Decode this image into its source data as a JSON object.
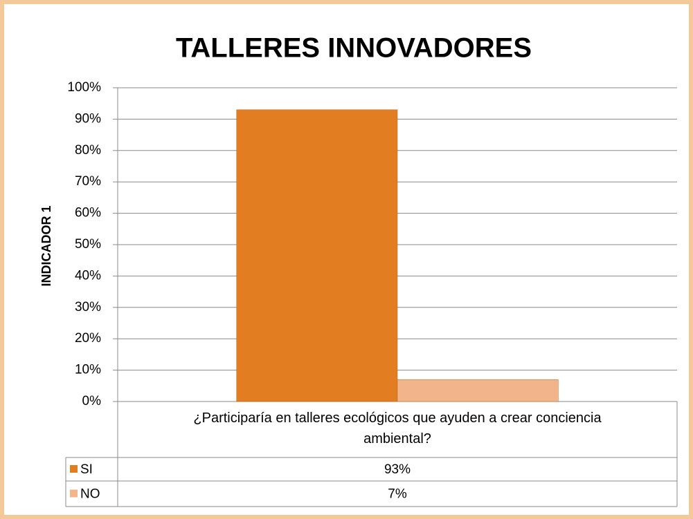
{
  "chart_data": {
    "type": "bar",
    "title": "TALLERES INNOVADORES",
    "y_label": "INDICADOR  1",
    "categories": [
      "¿Participaría en talleres ecológicos que ayuden a crear conciencia ambiental?"
    ],
    "series": [
      {
        "name": "SI",
        "color": "#e27d22",
        "values": [
          93
        ],
        "value_labels": [
          "93%"
        ]
      },
      {
        "name": "NO",
        "color": "#f2b48a",
        "values": [
          7
        ],
        "value_labels": [
          "7%"
        ]
      }
    ],
    "ylim": [
      0,
      100
    ],
    "yticks": [
      {
        "value": 0,
        "label": "0%"
      },
      {
        "value": 10,
        "label": "10%"
      },
      {
        "value": 20,
        "label": "20%"
      },
      {
        "value": 30,
        "label": "30%"
      },
      {
        "value": 40,
        "label": "40%"
      },
      {
        "value": 50,
        "label": "50%"
      },
      {
        "value": 60,
        "label": "60%"
      },
      {
        "value": 70,
        "label": "70%"
      },
      {
        "value": 80,
        "label": "80%"
      },
      {
        "value": 90,
        "label": "90%"
      },
      {
        "value": 100,
        "label": "100%"
      }
    ],
    "grid": true
  }
}
